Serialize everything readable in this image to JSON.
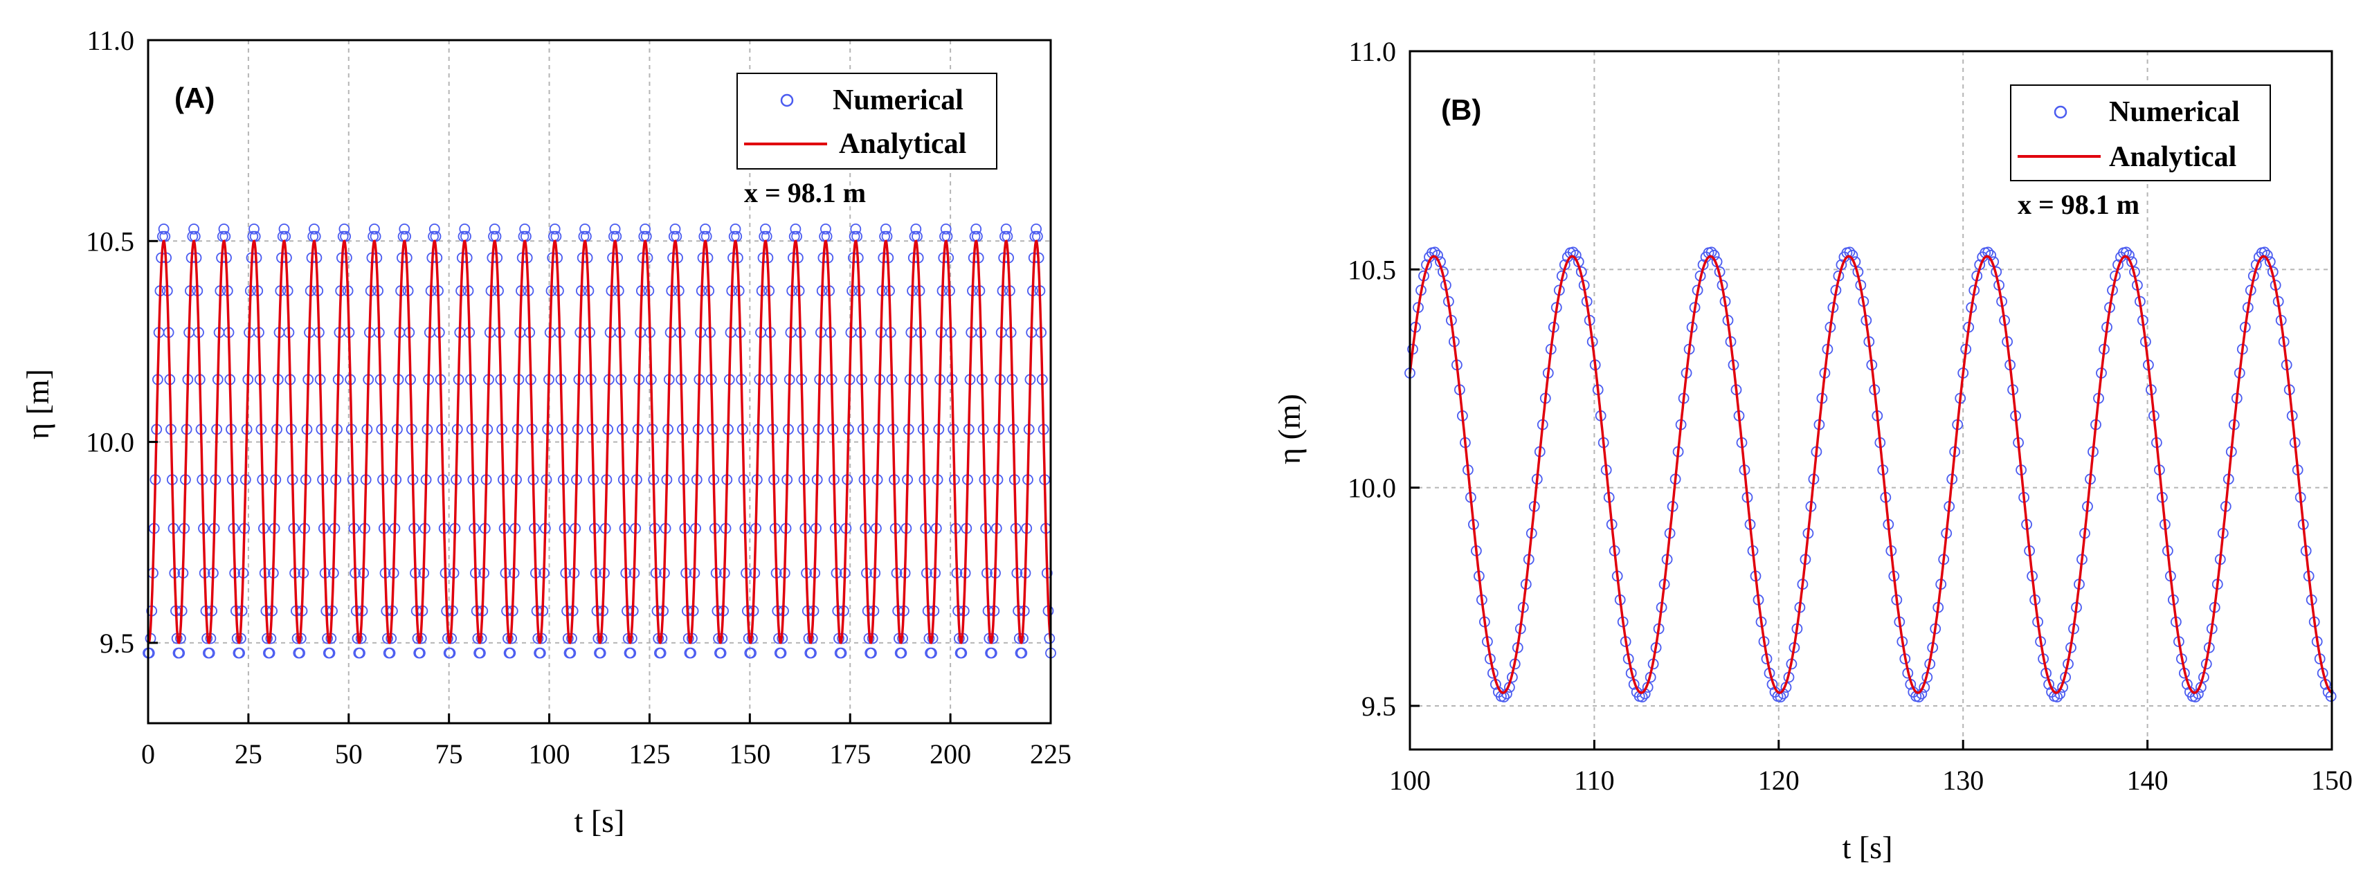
{
  "chart_data": [
    {
      "type": "line",
      "panel_label": "(A)",
      "xlabel": "t [s]",
      "ylabel": "η [m]",
      "xlim": [
        0,
        225
      ],
      "ylim": [
        9.3,
        11.0
      ],
      "xticks": [
        0,
        25,
        50,
        75,
        100,
        125,
        150,
        175,
        200,
        225
      ],
      "xtick_labels": [
        "0",
        "25",
        "50",
        "75",
        "100",
        "125",
        "150",
        "175",
        "200",
        "225"
      ],
      "yticks": [
        9.5,
        10.0,
        10.5,
        11.0
      ],
      "ytick_labels": [
        "9.5",
        "10.0",
        "10.5",
        "11.0"
      ],
      "grid": true,
      "legend_position": "top-right",
      "annotation": "x = 98.1 m",
      "wave": {
        "mean": 10.0,
        "amplitude": 0.5,
        "period": 7.5,
        "peak_time": 3.9
      },
      "series": [
        {
          "name": "Numerical",
          "style": "open-circle markers",
          "color": "#4b5cf0",
          "sample_step_s": 0.3,
          "extrema_overshoot": 0.03
        },
        {
          "name": "Analytical",
          "style": "solid line",
          "color": "#e0000d"
        }
      ]
    },
    {
      "type": "line",
      "panel_label": "(B)",
      "xlabel": "t [s]",
      "ylabel": "η (m)",
      "xlim": [
        100,
        150
      ],
      "ylim": [
        9.4,
        11.0
      ],
      "xticks": [
        100,
        110,
        120,
        130,
        140,
        150
      ],
      "xtick_labels": [
        "100",
        "110",
        "120",
        "130",
        "140",
        "150"
      ],
      "yticks": [
        9.5,
        10.0,
        10.5,
        11.0
      ],
      "ytick_labels": [
        "9.5",
        "10.0",
        "10.5",
        "11.0"
      ],
      "grid": true,
      "legend_position": "top-right",
      "annotation": "x = 98.1 m",
      "wave": {
        "mean": 10.03,
        "amplitude": 0.5,
        "period": 7.5,
        "peak_time": 101.3
      },
      "series": [
        {
          "name": "Numerical",
          "style": "open-circle markers",
          "color": "#4b5cf0",
          "sample_step_s": 0.15,
          "extrema_overshoot": 0.01
        },
        {
          "name": "Analytical",
          "style": "solid line",
          "color": "#e0000d"
        }
      ]
    }
  ]
}
